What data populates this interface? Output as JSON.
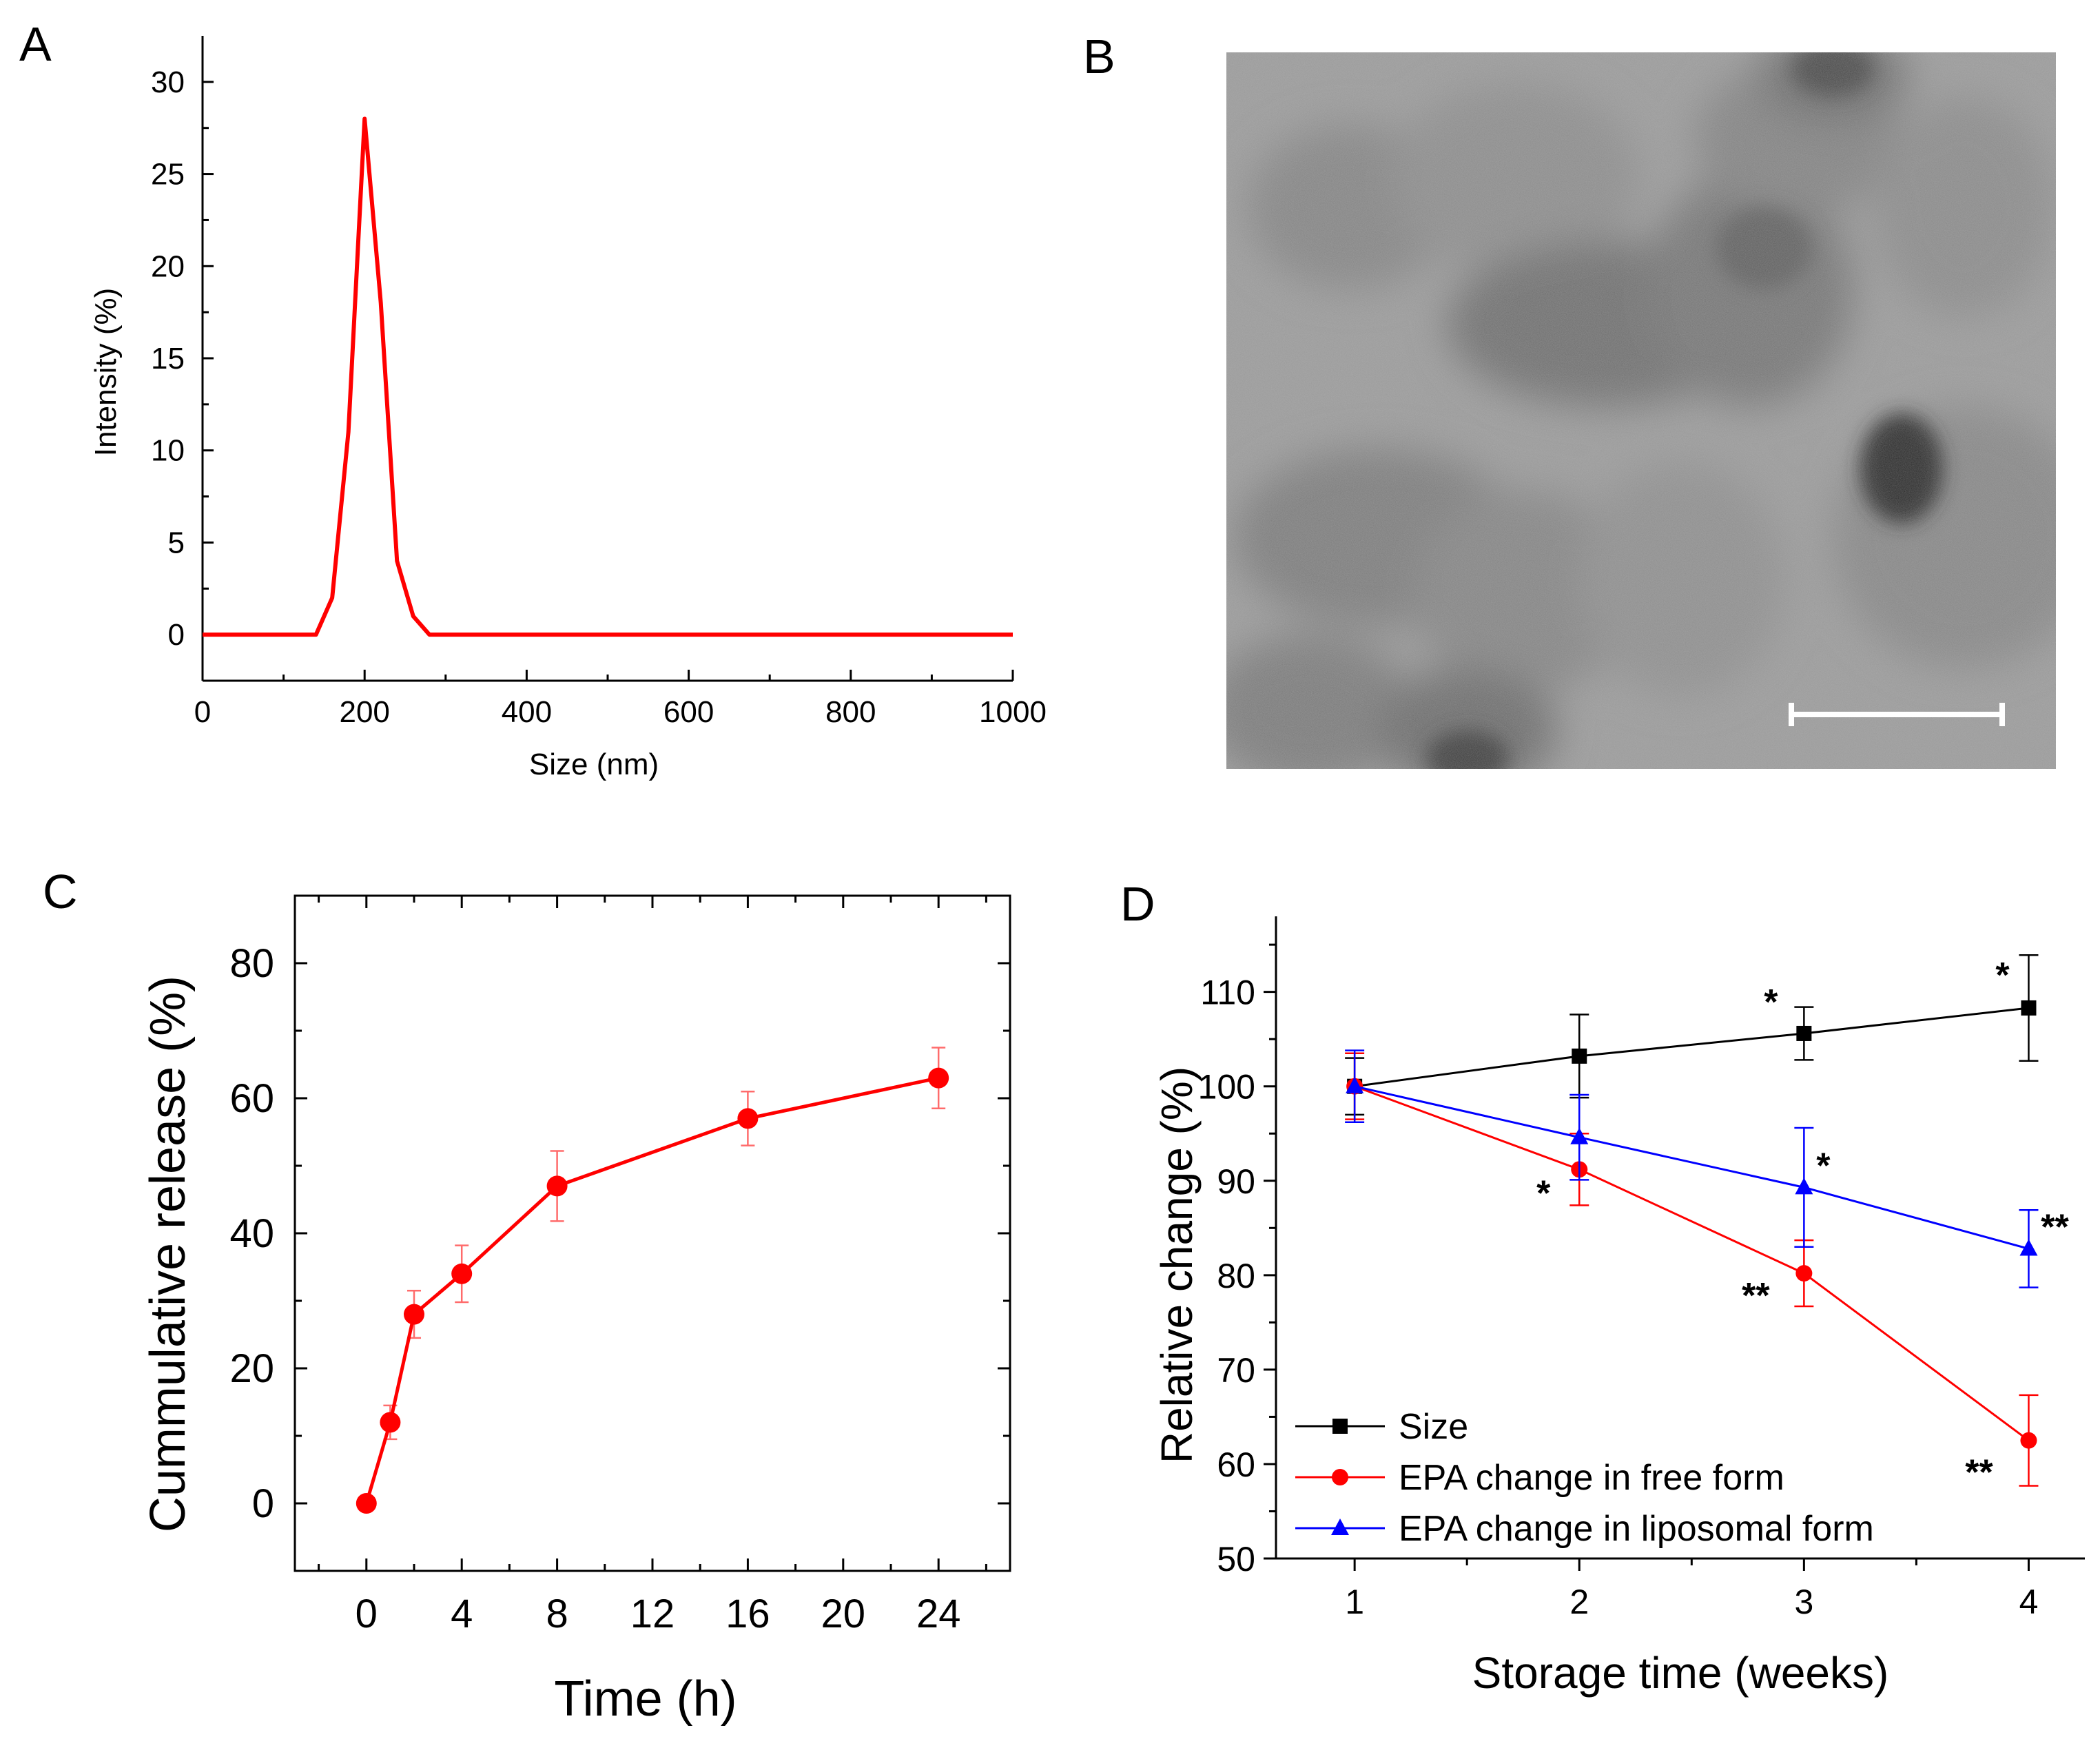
{
  "chart_data": [
    {
      "panel": "A",
      "type": "line",
      "xlabel": "Size (nm)",
      "ylabel": "Intensity (%)",
      "xlim": [
        0,
        1000
      ],
      "ylim": [
        -2.5,
        32.5
      ],
      "xticks": [
        "0",
        "200",
        "400",
        "600",
        "800",
        "1000"
      ],
      "yticks": [
        "0",
        "5",
        "10",
        "15",
        "20",
        "25",
        "30"
      ],
      "color": "#ff0000",
      "series": [
        {
          "name": "Intensity",
          "x": [
            0,
            140,
            160,
            180,
            200,
            220,
            240,
            260,
            280,
            1000
          ],
          "y": [
            0,
            0,
            2,
            11,
            28,
            18,
            4,
            1,
            0,
            0
          ]
        }
      ]
    },
    {
      "panel": "C",
      "type": "line",
      "xlabel": "Time (h)",
      "ylabel": "Cummulative release (%)",
      "xlim": [
        -3,
        27
      ],
      "ylim": [
        -10,
        90
      ],
      "xticks": [
        "0",
        "4",
        "8",
        "12",
        "16",
        "20",
        "24"
      ],
      "yticks": [
        "0",
        "20",
        "40",
        "60",
        "80"
      ],
      "color": "#ff0000",
      "series": [
        {
          "name": "Cumulative release",
          "x": [
            0,
            1,
            2,
            4,
            8,
            16,
            24
          ],
          "y": [
            0,
            12,
            28,
            34,
            47,
            57,
            63
          ],
          "err": [
            0,
            2.5,
            3.5,
            4.2,
            5.2,
            4,
            4.5
          ]
        }
      ]
    },
    {
      "panel": "D",
      "type": "line",
      "xlabel": "Storage time (weeks)",
      "ylabel": "Relative change (%)",
      "xlim": [
        0.65,
        4.25
      ],
      "ylim": [
        50,
        118
      ],
      "xticks": [
        "1",
        "2",
        "3",
        "4"
      ],
      "yticks": [
        "50",
        "60",
        "70",
        "80",
        "90",
        "100",
        "110"
      ],
      "legend_position": "bottom-left",
      "series": [
        {
          "name": "Size",
          "color": "#000000",
          "marker": "square",
          "x": [
            1,
            2,
            3,
            4
          ],
          "y": [
            100,
            103.2,
            105.6,
            108.3
          ],
          "err": [
            3,
            4.4,
            2.8,
            5.6
          ],
          "annotations": [
            "",
            "",
            "*",
            "*"
          ]
        },
        {
          "name": "EPA change in free form",
          "color": "#ff0000",
          "marker": "circle",
          "x": [
            1,
            2,
            3,
            4
          ],
          "y": [
            100,
            91.2,
            80.2,
            62.5
          ],
          "err": [
            3.5,
            3.8,
            3.5,
            4.8
          ],
          "annotations": [
            "",
            "*",
            "**",
            "**"
          ]
        },
        {
          "name": "EPA change in liposomal form",
          "color": "#0000ff",
          "marker": "triangle",
          "x": [
            1,
            2,
            3,
            4
          ],
          "y": [
            100,
            94.6,
            89.3,
            82.8
          ],
          "err": [
            3.8,
            4.5,
            6.3,
            4.1
          ],
          "annotations": [
            "",
            "",
            "*",
            "**"
          ]
        }
      ]
    }
  ],
  "panels": {
    "a_letter": "A",
    "b_letter": "B",
    "c_letter": "C",
    "d_letter": "D"
  }
}
